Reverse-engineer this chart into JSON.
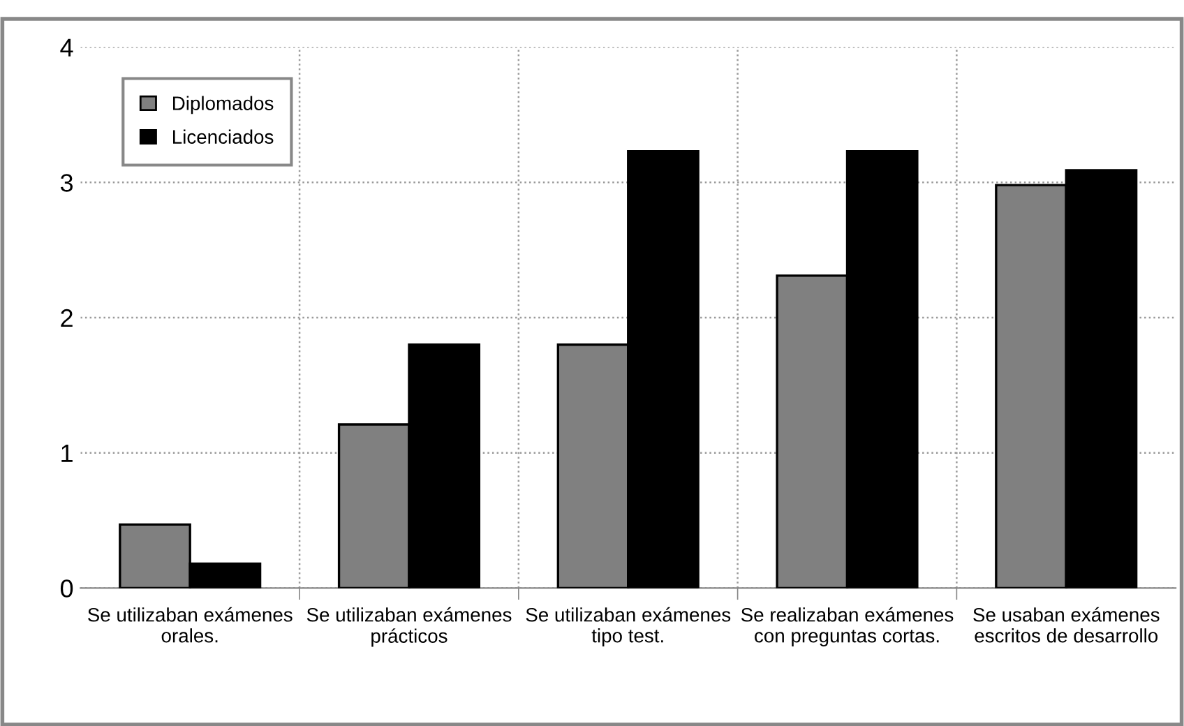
{
  "chart_data": {
    "type": "bar",
    "categories": [
      "Se utilizaban exámenes\norales.",
      "Se utilizaban exámenes\nprácticos",
      "Se utilizaban exámenes\ntipo test.",
      "Se realizaban exámenes\ncon preguntas cortas.",
      "Se usaban exámenes\nescritos de desarrollo"
    ],
    "series": [
      {
        "name": "Diplomados",
        "color": "#808080",
        "values": [
          0.47,
          1.21,
          1.8,
          2.31,
          2.98
        ]
      },
      {
        "name": "Licenciados",
        "color": "#000000",
        "values": [
          0.18,
          1.8,
          3.23,
          3.23,
          3.09
        ]
      }
    ],
    "ylim": [
      0,
      4
    ],
    "yticks": [
      0,
      1,
      2,
      3,
      4
    ],
    "grid": true,
    "legend": "top left"
  }
}
